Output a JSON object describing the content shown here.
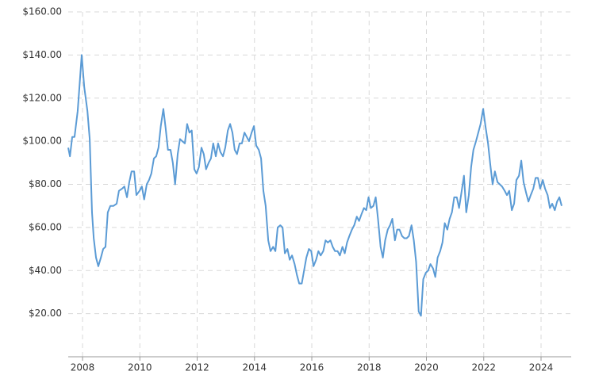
{
  "chart_data": {
    "type": "line",
    "x": [
      2007.5,
      2007.56,
      2007.64,
      2007.72,
      2007.83,
      2007.89,
      2007.97,
      2008.06,
      2008.17,
      2008.25,
      2008.33,
      2008.39,
      2008.47,
      2008.55,
      2008.64,
      2008.72,
      2008.8,
      2008.88,
      2008.97,
      2009.08,
      2009.19,
      2009.27,
      2009.38,
      2009.46,
      2009.55,
      2009.63,
      2009.71,
      2009.8,
      2009.88,
      2009.99,
      2010.07,
      2010.15,
      2010.24,
      2010.32,
      2010.4,
      2010.49,
      2010.57,
      2010.65,
      2010.73,
      2010.82,
      2010.9,
      2010.98,
      2011.07,
      2011.15,
      2011.23,
      2011.32,
      2011.4,
      2011.48,
      2011.57,
      2011.65,
      2011.73,
      2011.81,
      2011.9,
      2011.98,
      2012.06,
      2012.15,
      2012.23,
      2012.31,
      2012.4,
      2012.48,
      2012.56,
      2012.65,
      2012.73,
      2012.81,
      2012.9,
      2012.98,
      2013.07,
      2013.15,
      2013.23,
      2013.31,
      2013.39,
      2013.48,
      2013.56,
      2013.65,
      2013.73,
      2013.81,
      2013.9,
      2013.98,
      2014.06,
      2014.15,
      2014.23,
      2014.31,
      2014.39,
      2014.48,
      2014.56,
      2014.65,
      2014.73,
      2014.81,
      2014.9,
      2014.98,
      2015.06,
      2015.15,
      2015.23,
      2015.31,
      2015.4,
      2015.48,
      2015.56,
      2015.65,
      2015.73,
      2015.81,
      2015.9,
      2015.98,
      2016.06,
      2016.15,
      2016.23,
      2016.31,
      2016.4,
      2016.48,
      2016.56,
      2016.65,
      2016.73,
      2016.81,
      2016.9,
      2016.98,
      2017.07,
      2017.15,
      2017.23,
      2017.31,
      2017.4,
      2017.48,
      2017.57,
      2017.65,
      2017.73,
      2017.82,
      2017.9,
      2017.98,
      2018.06,
      2018.15,
      2018.23,
      2018.31,
      2018.4,
      2018.48,
      2018.56,
      2018.65,
      2018.73,
      2018.81,
      2018.9,
      2018.98,
      2019.06,
      2019.15,
      2019.23,
      2019.31,
      2019.39,
      2019.48,
      2019.56,
      2019.64,
      2019.73,
      2019.81,
      2019.89,
      2019.98,
      2020.06,
      2020.14,
      2020.23,
      2020.31,
      2020.39,
      2020.48,
      2020.56,
      2020.64,
      2020.73,
      2020.81,
      2020.89,
      2020.97,
      2021.06,
      2021.14,
      2021.22,
      2021.31,
      2021.39,
      2021.48,
      2021.56,
      2021.64,
      2021.73,
      2021.81,
      2021.89,
      2021.98,
      2022.06,
      2022.15,
      2022.23,
      2022.31,
      2022.39,
      2022.48,
      2022.56,
      2022.64,
      2022.73,
      2022.81,
      2022.89,
      2022.98,
      2023.06,
      2023.14,
      2023.23,
      2023.31,
      2023.39,
      2023.48,
      2023.56,
      2023.64,
      2023.73,
      2023.81,
      2023.89,
      2023.97,
      2024.06,
      2024.14,
      2024.23,
      2024.31,
      2024.39,
      2024.48,
      2024.56,
      2024.64,
      2024.72
    ],
    "series": [
      {
        "color": "#5b9bd5",
        "values": [
          97,
          93,
          102,
          102,
          114,
          125,
          140,
          125,
          114,
          101,
          67,
          55,
          46,
          42,
          46,
          50,
          51,
          67,
          70,
          70,
          71,
          77,
          78,
          79,
          74,
          81,
          86,
          86,
          75,
          77,
          79,
          73,
          80,
          82,
          85,
          92,
          93,
          97,
          107,
          115,
          106,
          96,
          96,
          90,
          80,
          94,
          101,
          100,
          99,
          108,
          104,
          105,
          87,
          85,
          88,
          97,
          94,
          87,
          90,
          92,
          99,
          93,
          99,
          95,
          93,
          97,
          105,
          108,
          104,
          96,
          94,
          99,
          99,
          104,
          102,
          100,
          104,
          107,
          98,
          96,
          92,
          77,
          70,
          54,
          49,
          51,
          49,
          60,
          61,
          60,
          48,
          50,
          45,
          47,
          43,
          38,
          34,
          34,
          40,
          46,
          50,
          49,
          42,
          45,
          49,
          47,
          49,
          54,
          53,
          54,
          51,
          49,
          49,
          47,
          51,
          48,
          53,
          56,
          59,
          61,
          65,
          63,
          66,
          69,
          68,
          74,
          69,
          70,
          74,
          64,
          51,
          46,
          54,
          59,
          61,
          64,
          54,
          59,
          59,
          56,
          55,
          55,
          56,
          61,
          54,
          44,
          21,
          19,
          36,
          39,
          40,
          43,
          41,
          37,
          46,
          49,
          53,
          62,
          59,
          64,
          67,
          74,
          74,
          69,
          76,
          84,
          67,
          75,
          88,
          96,
          100,
          104,
          108,
          115,
          107,
          99,
          89,
          80,
          86,
          81,
          80,
          79,
          77,
          75,
          77,
          68,
          71,
          82,
          84,
          91,
          81,
          76,
          72,
          75,
          78,
          83,
          83,
          78,
          82,
          78,
          75,
          69,
          71,
          68,
          72,
          74,
          70
        ]
      }
    ],
    "xlim": [
      2007.5,
      2024.72
    ],
    "xticks": [
      2008,
      2010,
      2012,
      2014,
      2016,
      2018,
      2020,
      2022,
      2024
    ],
    "ylim": [
      0,
      160
    ],
    "yticks": [
      {
        "value": 20,
        "label": "$20.00"
      },
      {
        "value": 40,
        "label": "$40.00"
      },
      {
        "value": 60,
        "label": "$60.00"
      },
      {
        "value": 80,
        "label": "$80.00"
      },
      {
        "value": 100,
        "label": "$100.00"
      },
      {
        "value": 120,
        "label": "$120.00"
      },
      {
        "value": 140,
        "label": "$140.00"
      },
      {
        "value": 160,
        "label": "$160.00"
      }
    ],
    "grid": true
  }
}
